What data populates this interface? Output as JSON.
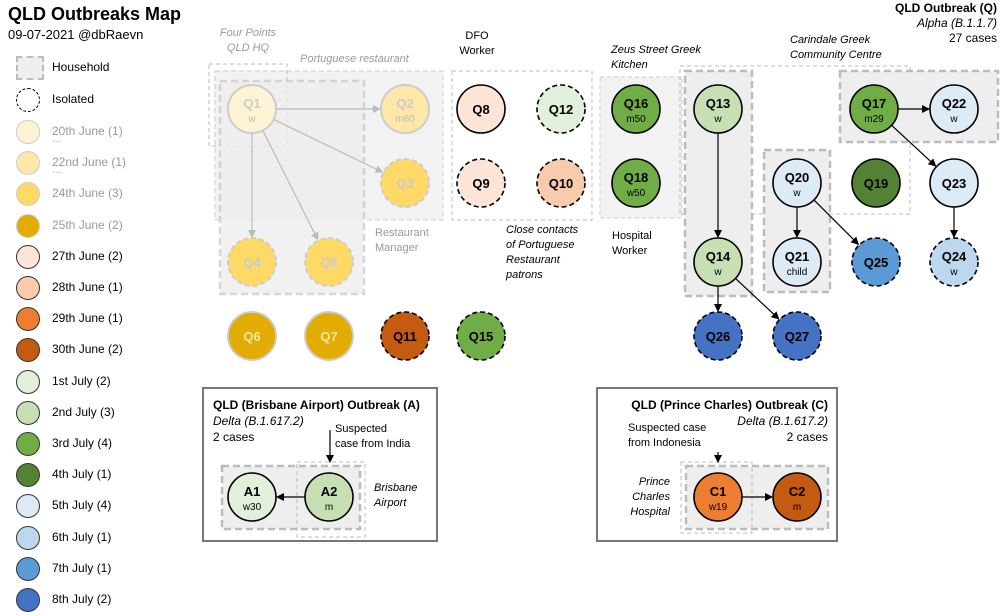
{
  "header": {
    "title": "QLD Outbreaks Map",
    "subtitle": "09-07-2021 @dbRaevn"
  },
  "outbreak_q": {
    "title": "QLD Outbreak (Q)",
    "strain": "Alpha (B.1.1.7)",
    "cases": "27 cases"
  },
  "outbreak_a": {
    "title": "QLD (Brisbane Airport) Outbreak (A)",
    "strain": "Delta (B.1.617.2)",
    "cases": "2 cases"
  },
  "outbreak_c": {
    "title": "QLD (Prince Charles) Outbreak (C)",
    "strain": "Delta (B.1.617.2)",
    "cases": "2 cases"
  },
  "legend": {
    "household": "Household",
    "isolated": "Isolated",
    "dates": [
      {
        "label": "20th June (1)",
        "color": "#fff3d6",
        "faded": true
      },
      {
        "label": "22nd June (1)",
        "color": "#ffe7a8",
        "faded": true
      },
      {
        "label": "24th June (3)",
        "color": "#ffd966",
        "faded": true
      },
      {
        "label": "25th June (2)",
        "color": "#e2ac00",
        "faded": true
      },
      {
        "label": "27th June (2)",
        "color": "#fce4d6",
        "faded": false
      },
      {
        "label": "28th June (1)",
        "color": "#f8cbad",
        "faded": false
      },
      {
        "label": "29th June (1)",
        "color": "#ed7d31",
        "faded": false
      },
      {
        "label": "30th June (2)",
        "color": "#c55a11",
        "faded": false
      },
      {
        "label": "1st July (2)",
        "color": "#e2efda",
        "faded": false
      },
      {
        "label": "2nd July (3)",
        "color": "#c6e0b4",
        "faded": false
      },
      {
        "label": "3rd July (4)",
        "color": "#70ad47",
        "faded": false
      },
      {
        "label": "4th July (1)",
        "color": "#548235",
        "faded": false
      },
      {
        "label": "5th July (4)",
        "color": "#ddebf7",
        "faded": false
      },
      {
        "label": "6th July (1)",
        "color": "#bdd7ee",
        "faded": false
      },
      {
        "label": "7th July (1)",
        "color": "#5b9bd5",
        "faded": false
      },
      {
        "label": "8th July (2)",
        "color": "#4472c4",
        "faded": false
      }
    ]
  },
  "annotations": {
    "four_points": "Four Points\nQLD HQ",
    "portuguese": "Portuguese restaurant",
    "dfo": "DFO\nWorker",
    "zeus": "Zeus Street Greek\nKitchen",
    "carindale": "Carindale Greek\nCommunity Centre",
    "restaurant_manager": "Restaurant\nManager",
    "close_contacts": "Close contacts\nof Portuguese\nRestaurant\npatrons",
    "hospital_worker": "Hospital\nWorker",
    "suspected_india": "Suspected\ncase from India",
    "brisbane_airport": "Brisbane\nAirport",
    "suspected_indonesia": "Suspected case\nfrom Indonesia",
    "prince_charles": "Prince\nCharles\nHospital"
  },
  "nodes": [
    {
      "id": "Q1",
      "sub": "w",
      "color": "#fff3d6",
      "faded": true,
      "dashed": false
    },
    {
      "id": "Q2",
      "sub": "m60",
      "color": "#ffe7a8",
      "faded": true,
      "dashed": false
    },
    {
      "id": "Q3",
      "sub": "",
      "color": "#ffd966",
      "faded": true,
      "dashed": true
    },
    {
      "id": "Q4",
      "sub": "",
      "color": "#ffd966",
      "faded": true,
      "dashed": true
    },
    {
      "id": "Q5",
      "sub": "",
      "color": "#ffd966",
      "faded": true,
      "dashed": true
    },
    {
      "id": "Q6",
      "sub": "",
      "color": "#e2ac00",
      "faded": true,
      "dashed": false
    },
    {
      "id": "Q7",
      "sub": "",
      "color": "#e2ac00",
      "faded": true,
      "dashed": false
    },
    {
      "id": "Q8",
      "sub": "",
      "color": "#fce4d6",
      "faded": false,
      "dashed": false
    },
    {
      "id": "Q9",
      "sub": "",
      "color": "#fce4d6",
      "faded": false,
      "dashed": true
    },
    {
      "id": "Q10",
      "sub": "",
      "color": "#f8cbad",
      "faded": false,
      "dashed": true
    },
    {
      "id": "Q11",
      "sub": "",
      "color": "#c55a11",
      "faded": false,
      "dashed": true
    },
    {
      "id": "Q12",
      "sub": "",
      "color": "#e2efda",
      "faded": false,
      "dashed": true
    },
    {
      "id": "Q13",
      "sub": "w",
      "color": "#c6e0b4",
      "faded": false,
      "dashed": false
    },
    {
      "id": "Q14",
      "sub": "w",
      "color": "#c6e0b4",
      "faded": false,
      "dashed": false
    },
    {
      "id": "Q15",
      "sub": "",
      "color": "#70ad47",
      "faded": false,
      "dashed": true
    },
    {
      "id": "Q16",
      "sub": "m50",
      "color": "#70ad47",
      "faded": false,
      "dashed": false
    },
    {
      "id": "Q17",
      "sub": "m29",
      "color": "#70ad47",
      "faded": false,
      "dashed": false
    },
    {
      "id": "Q18",
      "sub": "w50",
      "color": "#70ad47",
      "faded": false,
      "dashed": false
    },
    {
      "id": "Q19",
      "sub": "",
      "color": "#548235",
      "faded": false,
      "dashed": false
    },
    {
      "id": "Q20",
      "sub": "w",
      "color": "#ddebf7",
      "faded": false,
      "dashed": false
    },
    {
      "id": "Q21",
      "sub": "child",
      "color": "#ddebf7",
      "faded": false,
      "dashed": false
    },
    {
      "id": "Q22",
      "sub": "w",
      "color": "#ddebf7",
      "faded": false,
      "dashed": false
    },
    {
      "id": "Q23",
      "sub": "",
      "color": "#ddebf7",
      "faded": false,
      "dashed": false
    },
    {
      "id": "Q24",
      "sub": "w",
      "color": "#bdd7ee",
      "faded": false,
      "dashed": true
    },
    {
      "id": "Q25",
      "sub": "",
      "color": "#5b9bd5",
      "faded": false,
      "dashed": true
    },
    {
      "id": "Q26",
      "sub": "",
      "color": "#4472c4",
      "faded": false,
      "dashed": true
    },
    {
      "id": "Q27",
      "sub": "",
      "color": "#4472c4",
      "faded": false,
      "dashed": true
    },
    {
      "id": "A1",
      "sub": "w30",
      "color": "#e2efda",
      "faded": false,
      "dashed": false
    },
    {
      "id": "A2",
      "sub": "m",
      "color": "#c6e0b4",
      "faded": false,
      "dashed": false
    },
    {
      "id": "C1",
      "sub": "w19",
      "color": "#ed7d31",
      "faded": false,
      "dashed": false
    },
    {
      "id": "C2",
      "sub": "m",
      "color": "#c55a11",
      "faded": false,
      "dashed": false
    }
  ],
  "edges": [
    {
      "from": "Q1",
      "to": "Q2",
      "faded": true
    },
    {
      "from": "Q1",
      "to": "Q3",
      "faded": true
    },
    {
      "from": "Q1",
      "to": "Q4",
      "faded": true
    },
    {
      "from": "Q1",
      "to": "Q5",
      "faded": true
    },
    {
      "from": "Q13",
      "to": "Q14",
      "faded": false
    },
    {
      "from": "Q14",
      "to": "Q26",
      "faded": false
    },
    {
      "from": "Q14",
      "to": "Q27",
      "faded": false
    },
    {
      "from": "Q20",
      "to": "Q21",
      "faded": false
    },
    {
      "from": "Q20",
      "to": "Q25",
      "faded": false
    },
    {
      "from": "Q17",
      "to": "Q22",
      "faded": false
    },
    {
      "from": "Q17",
      "to": "Q23",
      "faded": false
    },
    {
      "from": "Q23",
      "to": "Q24",
      "faded": false
    },
    {
      "from": "A2",
      "to": "A1",
      "faded": false
    },
    {
      "from": "C1",
      "to": "C2",
      "faded": false
    }
  ]
}
